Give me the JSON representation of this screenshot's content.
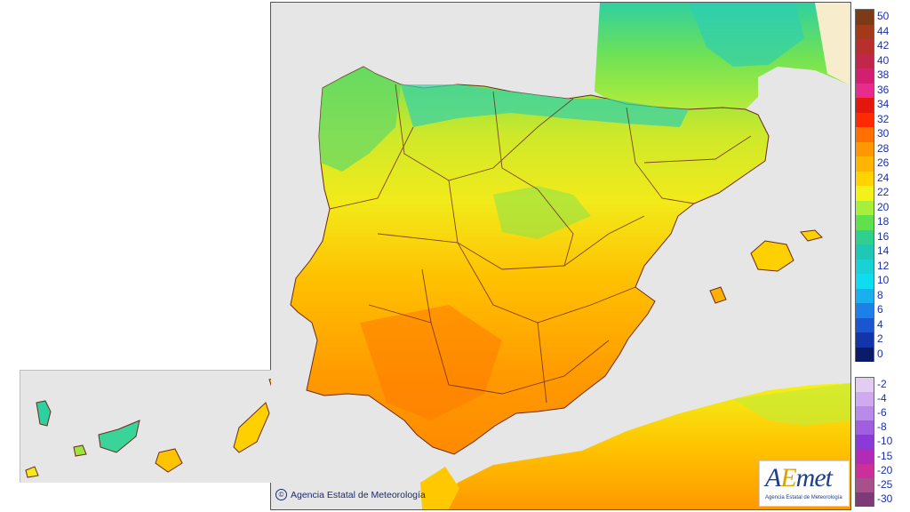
{
  "map": {
    "copyright": "Agencia Estatal de Meteorología",
    "copyright_icon": "copyright-icon",
    "logo": {
      "brand_prefix": "A",
      "brand_accent": "E",
      "brand_suffix": "met",
      "subtitle": "Agencia Estatal de Meteorología"
    }
  },
  "legend": {
    "positive": [
      {
        "label": "50",
        "color": "#7a3b16"
      },
      {
        "label": "44",
        "color": "#a23a1a"
      },
      {
        "label": "42",
        "color": "#b8302e"
      },
      {
        "label": "40",
        "color": "#c2264a"
      },
      {
        "label": "38",
        "color": "#d21f72"
      },
      {
        "label": "36",
        "color": "#e82c8e"
      },
      {
        "label": "34",
        "color": "#e4170f"
      },
      {
        "label": "32",
        "color": "#ff2a00"
      },
      {
        "label": "30",
        "color": "#ff7000"
      },
      {
        "label": "28",
        "color": "#ff9800"
      },
      {
        "label": "26",
        "color": "#ffb400"
      },
      {
        "label": "24",
        "color": "#ffd300"
      },
      {
        "label": "22",
        "color": "#f2f21a"
      },
      {
        "label": "20",
        "color": "#a6ef3a"
      },
      {
        "label": "18",
        "color": "#5fe04c"
      },
      {
        "label": "16",
        "color": "#2fcf8f"
      },
      {
        "label": "14",
        "color": "#1fc8b4"
      },
      {
        "label": "12",
        "color": "#19d2d6"
      },
      {
        "label": "10",
        "color": "#10dcf0"
      },
      {
        "label": "8",
        "color": "#1ab0f0"
      },
      {
        "label": "6",
        "color": "#1c80e6"
      },
      {
        "label": "4",
        "color": "#1a56d0"
      },
      {
        "label": "2",
        "color": "#1434aa"
      },
      {
        "label": "0",
        "color": "#0c1a6a"
      }
    ],
    "negative": [
      {
        "label": "-2",
        "color": "#e2ccf2"
      },
      {
        "label": "-4",
        "color": "#cfaaf0"
      },
      {
        "label": "-6",
        "color": "#b98aea"
      },
      {
        "label": "-8",
        "color": "#9f5fe0"
      },
      {
        "label": "-10",
        "color": "#8a3ad6"
      },
      {
        "label": "-15",
        "color": "#b22ab8"
      },
      {
        "label": "-20",
        "color": "#cc2f9a"
      },
      {
        "label": "-25",
        "color": "#a8508a"
      },
      {
        "label": "-30",
        "color": "#7d3a76"
      }
    ]
  }
}
